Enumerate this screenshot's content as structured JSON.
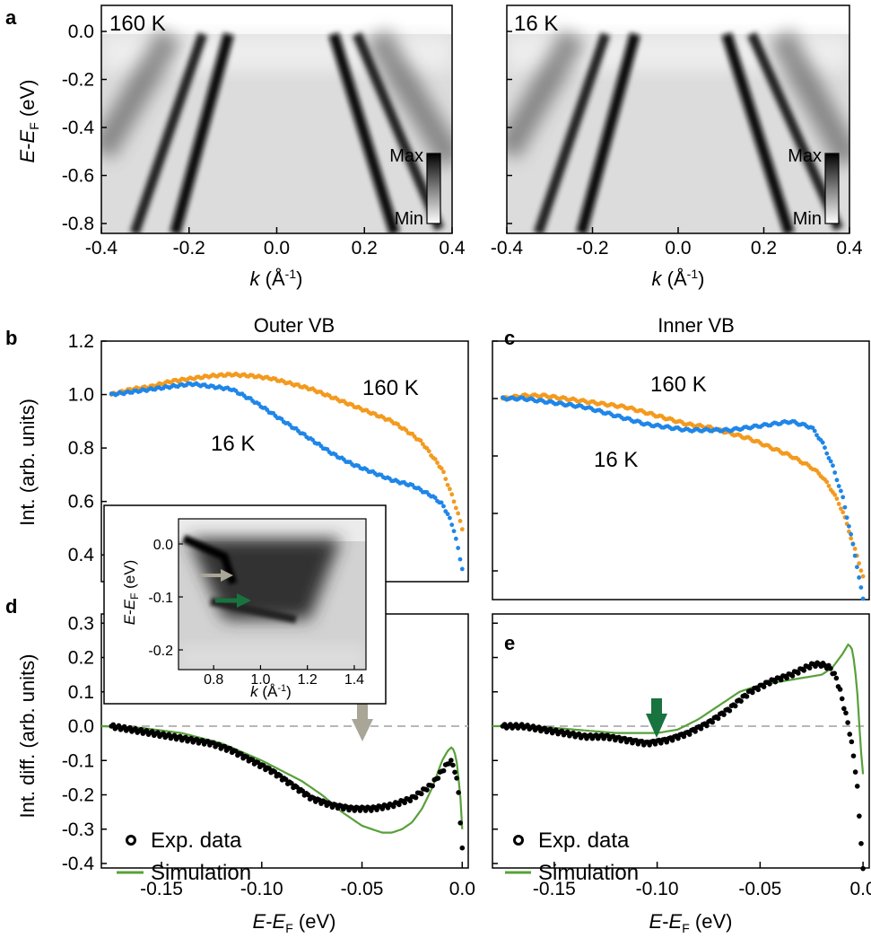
{
  "colors": {
    "hot": "#f39a1e",
    "cold": "#1f86e8",
    "sim": "#58a03a",
    "exp": "#000000",
    "zero": "#b7b7b7",
    "arrow_outer": "#a9a597",
    "arrow_inner": "#18733f"
  },
  "panel_labels": {
    "a": "a",
    "b": "b",
    "c": "c",
    "d": "d",
    "e": "e"
  },
  "panel_a": {
    "map_left": {
      "temp_label": "160 K",
      "temp_color": "#f39a1e"
    },
    "map_right": {
      "temp_label": "16 K",
      "temp_color": "#1f86e8"
    },
    "x_label_main": "k",
    "x_label_unit": " (Å",
    "x_label_sup": "-1",
    "x_label_close": ")",
    "y_label_E": "E",
    "y_label_dash": "-",
    "y_label_E2": "E",
    "y_label_sub": "F",
    "y_label_unit": " (eV)",
    "colorbar": {
      "max": "Max",
      "min": "Min"
    },
    "x_ticks": [
      "-0.4",
      "-0.2",
      "0.0",
      "0.2",
      "0.4"
    ],
    "y_ticks": [
      "0.0",
      "-0.2",
      "-0.4",
      "-0.6",
      "-0.8"
    ]
  },
  "panel_b": {
    "title": "Outer VB"
  },
  "panel_c": {
    "title": "Inner VB"
  },
  "inset": {
    "x_ticks": [
      "0.8",
      "1.0",
      "1.2",
      "1.4"
    ],
    "y_ticks": [
      "0.0",
      "-0.1",
      "-0.2"
    ],
    "x_label_main": "k",
    "x_label_unit": " (Å",
    "x_label_sup": "-1",
    "x_label_close": ")",
    "y_label_E": "E",
    "y_label_dash": "-",
    "y_label_E2": "E",
    "y_label_sub": "F",
    "y_label_unit": " (eV)"
  },
  "bottom_x_label": {
    "E": "E",
    "dash": "-",
    "E2": "E",
    "sub": "F",
    "unit": " (eV)"
  },
  "legend": {
    "exp": "Exp. data",
    "sim": "Simulation"
  },
  "chart_data": [
    {
      "panel": "b",
      "type": "scatter",
      "title": "Outer VB",
      "xlabel": "",
      "ylabel": "Int. (arb. units)",
      "xlim": [
        -0.18,
        0.003
      ],
      "ylim": [
        0.28,
        1.2
      ],
      "y_ticks": [
        "0.4",
        "0.6",
        "0.8",
        "1.0",
        "1.2"
      ],
      "series": [
        {
          "name": "160 K",
          "color": "#f39a1e",
          "x": [
            -0.175,
            -0.165,
            -0.155,
            -0.145,
            -0.135,
            -0.125,
            -0.115,
            -0.105,
            -0.095,
            -0.085,
            -0.075,
            -0.065,
            -0.055,
            -0.045,
            -0.035,
            -0.025,
            -0.02,
            -0.015,
            -0.01,
            -0.007,
            -0.004,
            -0.002,
            0.0
          ],
          "y": [
            1.0,
            1.02,
            1.03,
            1.05,
            1.06,
            1.07,
            1.075,
            1.07,
            1.06,
            1.04,
            1.02,
            0.99,
            0.96,
            0.93,
            0.9,
            0.85,
            0.82,
            0.77,
            0.72,
            0.66,
            0.6,
            0.55,
            0.5
          ]
        },
        {
          "name": "16 K",
          "color": "#1f86e8",
          "x": [
            -0.175,
            -0.165,
            -0.155,
            -0.145,
            -0.135,
            -0.125,
            -0.115,
            -0.105,
            -0.095,
            -0.085,
            -0.075,
            -0.065,
            -0.055,
            -0.045,
            -0.035,
            -0.025,
            -0.02,
            -0.015,
            -0.01,
            -0.007,
            -0.004,
            -0.002,
            0.0
          ],
          "y": [
            1.0,
            1.01,
            1.02,
            1.03,
            1.04,
            1.03,
            1.02,
            0.98,
            0.93,
            0.88,
            0.83,
            0.78,
            0.74,
            0.71,
            0.68,
            0.66,
            0.64,
            0.62,
            0.59,
            0.55,
            0.49,
            0.42,
            0.35
          ]
        }
      ]
    },
    {
      "panel": "c",
      "type": "scatter",
      "title": "Inner VB",
      "xlim": [
        -0.18,
        0.003
      ],
      "ylim": [
        0.28,
        1.2
      ],
      "series": [
        {
          "name": "160 K",
          "color": "#f39a1e",
          "x": [
            -0.175,
            -0.165,
            -0.155,
            -0.145,
            -0.135,
            -0.125,
            -0.115,
            -0.105,
            -0.095,
            -0.085,
            -0.075,
            -0.065,
            -0.055,
            -0.045,
            -0.035,
            -0.025,
            -0.02,
            -0.015,
            -0.01,
            -0.006,
            -0.002,
            0.0
          ],
          "y": [
            1.0,
            1.01,
            1.01,
            1.0,
            0.99,
            0.98,
            0.97,
            0.95,
            0.93,
            0.91,
            0.9,
            0.88,
            0.86,
            0.83,
            0.8,
            0.76,
            0.73,
            0.68,
            0.61,
            0.52,
            0.43,
            0.38
          ]
        },
        {
          "name": "16 K",
          "color": "#1f86e8",
          "x": [
            -0.175,
            -0.165,
            -0.155,
            -0.145,
            -0.135,
            -0.125,
            -0.115,
            -0.105,
            -0.095,
            -0.085,
            -0.075,
            -0.065,
            -0.055,
            -0.045,
            -0.035,
            -0.025,
            -0.02,
            -0.015,
            -0.01,
            -0.006,
            -0.003,
            -0.001,
            0.0
          ],
          "y": [
            1.0,
            1.0,
            0.99,
            0.98,
            0.97,
            0.95,
            0.93,
            0.91,
            0.9,
            0.89,
            0.89,
            0.89,
            0.9,
            0.91,
            0.92,
            0.9,
            0.85,
            0.77,
            0.66,
            0.53,
            0.42,
            0.34,
            0.3
          ]
        }
      ]
    },
    {
      "panel": "d",
      "type": "scatter",
      "ylabel": "Int. diff. (arb. units)",
      "xlim": [
        -0.18,
        0.003
      ],
      "ylim": [
        -0.43,
        0.36
      ],
      "x_ticks": [
        "-0.15",
        "-0.10",
        "-0.05",
        "0.0"
      ],
      "y_ticks": [
        "-0.4",
        "-0.3",
        "-0.2",
        "-0.1",
        "0.0",
        "0.1",
        "0.2",
        "0.3"
      ],
      "series": [
        {
          "name": "Exp. data",
          "color": "#000000",
          "x": [
            -0.175,
            -0.165,
            -0.155,
            -0.145,
            -0.135,
            -0.125,
            -0.115,
            -0.105,
            -0.095,
            -0.085,
            -0.075,
            -0.065,
            -0.055,
            -0.045,
            -0.035,
            -0.025,
            -0.015,
            -0.01,
            -0.006,
            -0.004,
            -0.002,
            -0.001,
            0.0
          ],
          "y": [
            0.0,
            -0.01,
            -0.02,
            -0.03,
            -0.04,
            -0.05,
            -0.07,
            -0.1,
            -0.13,
            -0.17,
            -0.21,
            -0.23,
            -0.24,
            -0.24,
            -0.23,
            -0.21,
            -0.17,
            -0.13,
            -0.1,
            -0.12,
            -0.18,
            -0.27,
            -0.36
          ]
        },
        {
          "name": "Simulation",
          "color": "#58a03a",
          "x": [
            -0.18,
            -0.16,
            -0.14,
            -0.12,
            -0.1,
            -0.08,
            -0.07,
            -0.06,
            -0.05,
            -0.04,
            -0.035,
            -0.03,
            -0.025,
            -0.02,
            -0.015,
            -0.01,
            -0.007,
            -0.005,
            -0.003,
            -0.001,
            0.0
          ],
          "y": [
            0.0,
            -0.005,
            -0.02,
            -0.05,
            -0.1,
            -0.16,
            -0.2,
            -0.25,
            -0.29,
            -0.31,
            -0.31,
            -0.3,
            -0.28,
            -0.24,
            -0.18,
            -0.1,
            -0.07,
            -0.06,
            -0.09,
            -0.2,
            -0.3
          ]
        }
      ]
    },
    {
      "panel": "e",
      "type": "scatter",
      "xlim": [
        -0.18,
        0.003
      ],
      "ylim": [
        -0.43,
        0.36
      ],
      "x_ticks": [
        "-0.15",
        "-0.10",
        "-0.05",
        "0.0"
      ],
      "series": [
        {
          "name": "Exp. data",
          "color": "#000000",
          "x": [
            -0.175,
            -0.165,
            -0.155,
            -0.145,
            -0.135,
            -0.125,
            -0.115,
            -0.105,
            -0.095,
            -0.085,
            -0.075,
            -0.065,
            -0.055,
            -0.045,
            -0.035,
            -0.028,
            -0.024,
            -0.02,
            -0.016,
            -0.013,
            -0.011,
            -0.009,
            -0.007,
            -0.005,
            -0.003,
            -0.002,
            -0.001,
            0.0
          ],
          "y": [
            0.0,
            0.0,
            -0.01,
            -0.02,
            -0.03,
            -0.03,
            -0.04,
            -0.05,
            -0.04,
            -0.02,
            0.01,
            0.05,
            0.1,
            0.13,
            0.15,
            0.17,
            0.18,
            0.18,
            0.17,
            0.14,
            0.1,
            0.05,
            0.0,
            -0.07,
            -0.16,
            -0.25,
            -0.33,
            -0.42
          ]
        },
        {
          "name": "Simulation",
          "color": "#58a03a",
          "x": [
            -0.18,
            -0.16,
            -0.14,
            -0.12,
            -0.1,
            -0.09,
            -0.08,
            -0.07,
            -0.06,
            -0.05,
            -0.04,
            -0.03,
            -0.02,
            -0.015,
            -0.01,
            -0.007,
            -0.005,
            -0.003,
            -0.002,
            -0.001,
            0.0
          ],
          "y": [
            0.0,
            0.0,
            -0.01,
            -0.02,
            -0.02,
            -0.01,
            0.02,
            0.06,
            0.1,
            0.12,
            0.13,
            0.14,
            0.15,
            0.17,
            0.21,
            0.24,
            0.22,
            0.12,
            0.02,
            -0.07,
            -0.14
          ]
        }
      ]
    }
  ]
}
